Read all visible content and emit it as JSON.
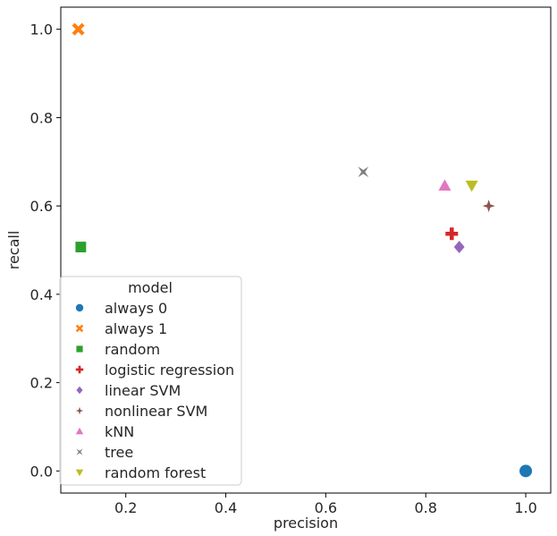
{
  "chart_data": {
    "type": "scatter",
    "xlabel": "precision",
    "ylabel": "recall",
    "xlim": [
      0.07,
      1.05
    ],
    "ylim": [
      -0.05,
      1.05
    ],
    "xticks": [
      0.2,
      0.4,
      0.6,
      0.8,
      1.0
    ],
    "yticks": [
      0.0,
      0.2,
      0.4,
      0.6,
      0.8,
      1.0
    ],
    "xtick_labels": [
      "0.2",
      "0.4",
      "0.6",
      "0.8",
      "1.0"
    ],
    "ytick_labels": [
      "0.0",
      "0.2",
      "0.4",
      "0.6",
      "0.8",
      "1.0"
    ],
    "grid": false,
    "legend": {
      "title": "model",
      "position": "lower-left"
    },
    "series": [
      {
        "name": "always 0",
        "x": [
          1.0
        ],
        "y": [
          0.0
        ],
        "color": "#1f77b4",
        "marker": "circle"
      },
      {
        "name": "always 1",
        "x": [
          0.105
        ],
        "y": [
          1.0
        ],
        "color": "#ff7f0e",
        "marker": "x"
      },
      {
        "name": "random",
        "x": [
          0.11
        ],
        "y": [
          0.507
        ],
        "color": "#2ca02c",
        "marker": "square"
      },
      {
        "name": "logistic regression",
        "x": [
          0.852
        ],
        "y": [
          0.537
        ],
        "color": "#d62728",
        "marker": "plus"
      },
      {
        "name": "linear SVM",
        "x": [
          0.867
        ],
        "y": [
          0.507
        ],
        "color": "#9467bd",
        "marker": "diamond"
      },
      {
        "name": "nonlinear SVM",
        "x": [
          0.926
        ],
        "y": [
          0.6
        ],
        "color": "#8c564b",
        "marker": "star4"
      },
      {
        "name": "kNN",
        "x": [
          0.838
        ],
        "y": [
          0.646
        ],
        "color": "#e377c2",
        "marker": "triangle-up"
      },
      {
        "name": "tree",
        "x": [
          0.675
        ],
        "y": [
          0.677
        ],
        "color": "#7f7f7f",
        "marker": "star4-x"
      },
      {
        "name": "random forest",
        "x": [
          0.892
        ],
        "y": [
          0.646
        ],
        "color": "#bcbd22",
        "marker": "triangle-down"
      }
    ]
  }
}
